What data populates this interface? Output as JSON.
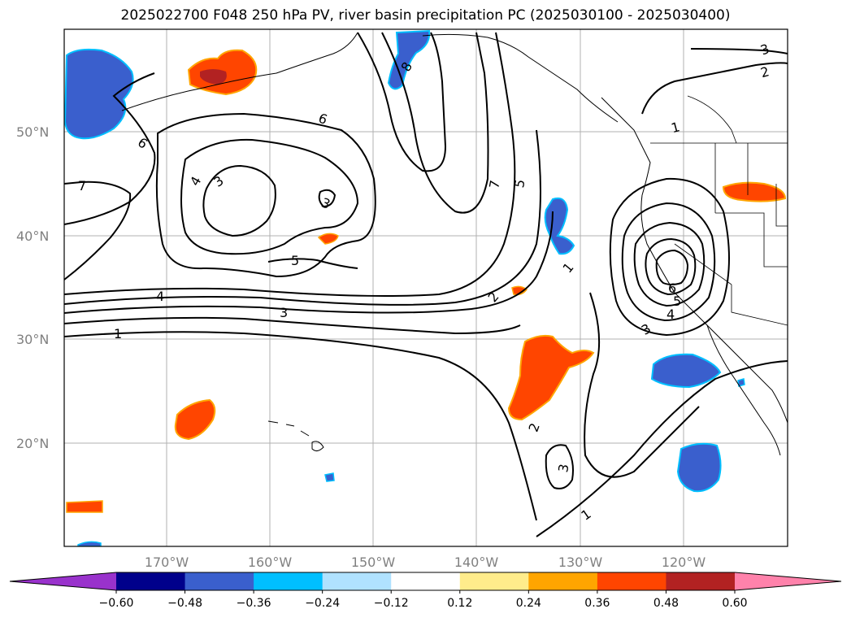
{
  "title": "2025022700 F048 250 hPa PV, river basin precipitation PC (2025030100 - 2025030400)",
  "lat_labels": [
    "50°N",
    "40°N",
    "30°N",
    "20°N"
  ],
  "lon_labels": [
    "170°W",
    "160°W",
    "150°W",
    "140°W",
    "130°W",
    "120°W"
  ],
  "colorbar": {
    "ticks": [
      "−0.60",
      "−0.48",
      "−0.36",
      "−0.24",
      "−0.12",
      "0.12",
      "0.24",
      "0.36",
      "0.48",
      "0.60"
    ],
    "colors": [
      "#9932cc",
      "#00008b",
      "#3a5fcd",
      "#00bfff",
      "#b0e2ff",
      "#ffffff",
      "#ffec8b",
      "#ffa500",
      "#ff4500",
      "#b22222",
      "#ff82ab"
    ]
  },
  "contour_labels": [
    "8",
    "6",
    "7",
    "4",
    "3",
    "3",
    "6",
    "7",
    "5",
    "4",
    "3",
    "1",
    "5",
    "2",
    "1",
    "3",
    "4",
    "5",
    "6",
    "1",
    "2",
    "3",
    "2",
    "3",
    "1"
  ]
}
